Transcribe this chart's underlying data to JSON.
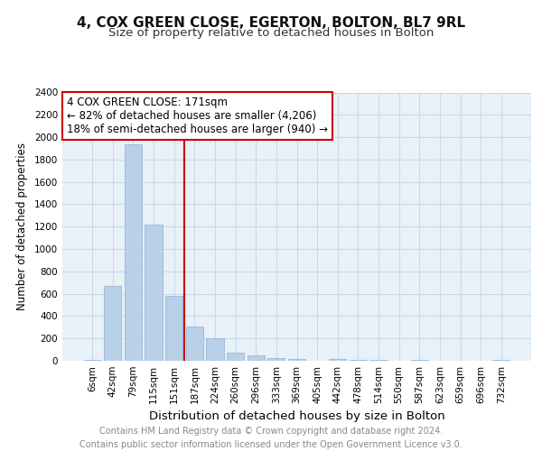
{
  "title": "4, COX GREEN CLOSE, EGERTON, BOLTON, BL7 9RL",
  "subtitle": "Size of property relative to detached houses in Bolton",
  "xlabel": "Distribution of detached houses by size in Bolton",
  "ylabel": "Number of detached properties",
  "categories": [
    "6sqm",
    "42sqm",
    "79sqm",
    "115sqm",
    "151sqm",
    "187sqm",
    "224sqm",
    "260sqm",
    "296sqm",
    "333sqm",
    "369sqm",
    "405sqm",
    "442sqm",
    "478sqm",
    "514sqm",
    "550sqm",
    "587sqm",
    "623sqm",
    "659sqm",
    "696sqm",
    "732sqm"
  ],
  "values": [
    5,
    670,
    1940,
    1220,
    580,
    305,
    200,
    75,
    50,
    25,
    20,
    0,
    15,
    10,
    5,
    0,
    5,
    0,
    0,
    0,
    5
  ],
  "bar_color": "#b8d0e8",
  "bar_edge_color": "#9ab8d8",
  "vline_x": 4.5,
  "vline_color": "#cc0000",
  "annotation_line1": "4 COX GREEN CLOSE: 171sqm",
  "annotation_line2": "← 82% of detached houses are smaller (4,206)",
  "annotation_line3": "18% of semi-detached houses are larger (940) →",
  "annotation_box_color": "#ffffff",
  "annotation_box_edge_color": "#cc0000",
  "ylim": [
    0,
    2400
  ],
  "yticks": [
    0,
    200,
    400,
    600,
    800,
    1000,
    1200,
    1400,
    1600,
    1800,
    2000,
    2200,
    2400
  ],
  "grid_color": "#c8d8ea",
  "background_color": "#e8f0f8",
  "footer_text": "Contains HM Land Registry data © Crown copyright and database right 2024.\nContains public sector information licensed under the Open Government Licence v3.0.",
  "title_fontsize": 11,
  "subtitle_fontsize": 9.5,
  "xlabel_fontsize": 9.5,
  "ylabel_fontsize": 8.5,
  "tick_fontsize": 7.5,
  "annotation_fontsize": 8.5,
  "footer_fontsize": 7
}
